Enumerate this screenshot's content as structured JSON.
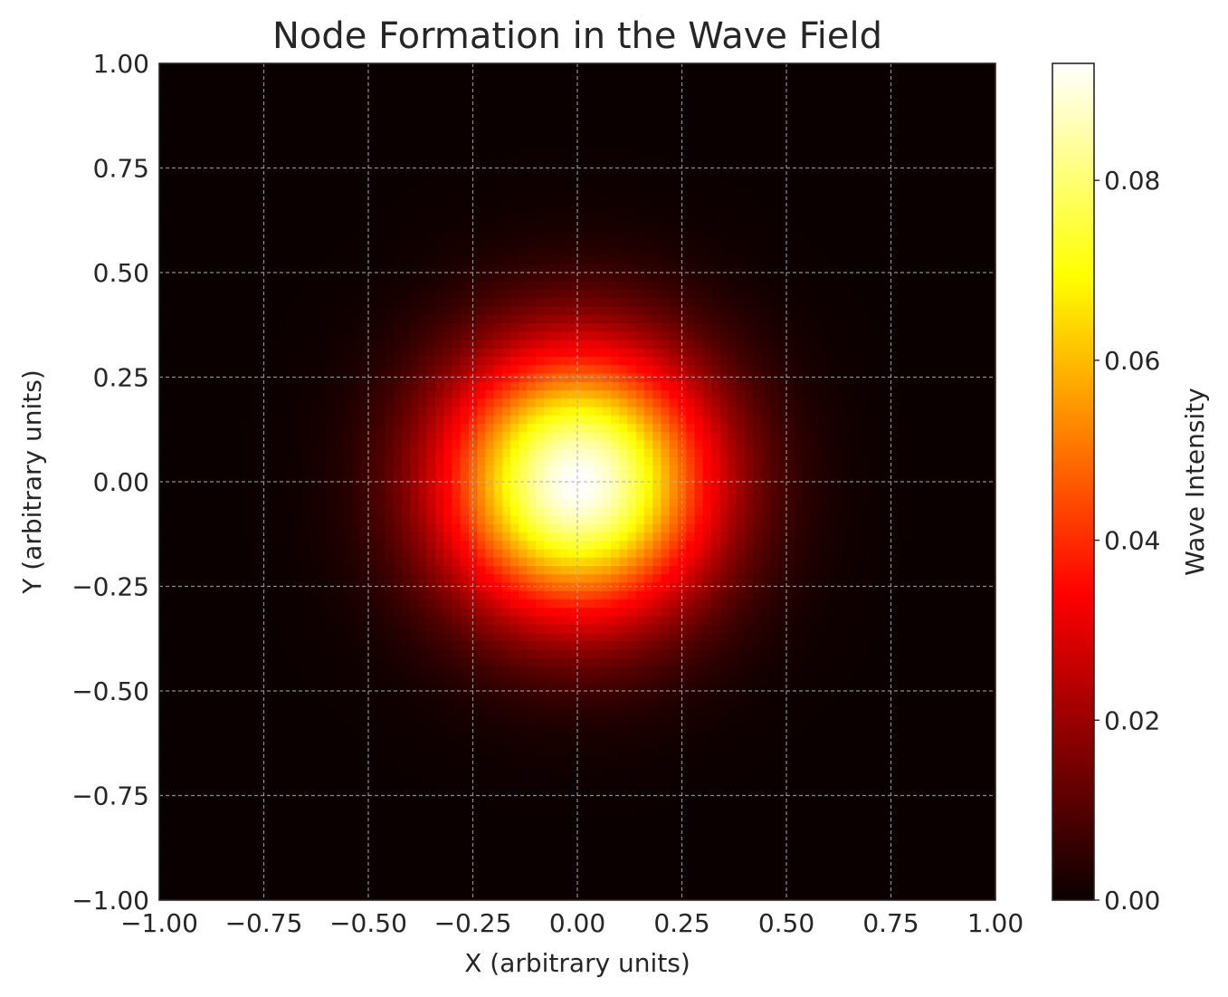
{
  "chart_data": {
    "type": "heatmap",
    "title": "Node Formation in the Wave Field",
    "xlabel": "X (arbitrary units)",
    "ylabel": "Y (arbitrary units)",
    "xlim": [
      -1.0,
      1.0
    ],
    "ylim": [
      -1.0,
      1.0
    ],
    "x_ticks": [
      "−1.00",
      "−0.75",
      "−0.50",
      "−0.25",
      "0.00",
      "0.25",
      "0.50",
      "0.75",
      "1.00"
    ],
    "y_ticks": [
      "−1.00",
      "−0.75",
      "−0.50",
      "−0.25",
      "0.00",
      "0.25",
      "0.50",
      "0.75",
      "1.00"
    ],
    "x_tick_values": [
      -1.0,
      -0.75,
      -0.5,
      -0.25,
      0.0,
      0.25,
      0.5,
      0.75,
      1.0
    ],
    "y_tick_values": [
      -1.0,
      -0.75,
      -0.5,
      -0.25,
      0.0,
      0.25,
      0.5,
      0.75,
      1.0
    ],
    "grid": true,
    "colormap": "hot",
    "colorbar": {
      "label": "Wave Intensity",
      "range": [
        0.0,
        0.093
      ],
      "tick_values": [
        0.0,
        0.02,
        0.04,
        0.06,
        0.08
      ],
      "tick_labels": [
        "0.00",
        "0.02",
        "0.04",
        "0.06",
        "0.08"
      ]
    },
    "field": {
      "shape": "gaussian",
      "center": [
        0.0,
        0.0
      ],
      "peak": 0.093,
      "sigma": 0.22,
      "grid_resolution": 100
    }
  }
}
